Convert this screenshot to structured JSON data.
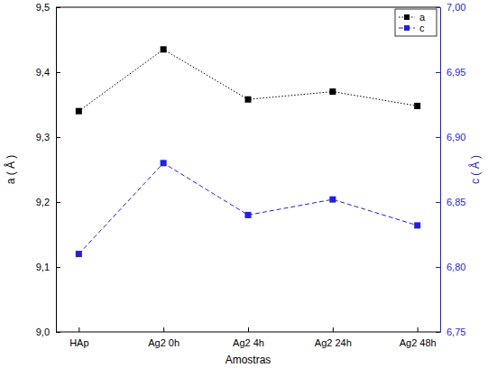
{
  "chart_data": {
    "type": "line",
    "xlabel": "Amostras",
    "ylabel": "a ( Å )",
    "y2label": "c ( Å )",
    "categories": [
      "HAp",
      "Ag2 0h",
      "Ag2 4h",
      "Ag2 24h",
      "Ag2 48h"
    ],
    "series": [
      {
        "name": "a",
        "color": "#000000",
        "marker": "square",
        "line_style": "dotted",
        "values": [
          9.34,
          9.435,
          9.358,
          9.37,
          9.348
        ]
      },
      {
        "name": "c",
        "color": "#1f1fe6",
        "marker": "square",
        "line_style": "dashed",
        "axis": "y2",
        "values": [
          6.81,
          6.88,
          6.84,
          6.852,
          6.832
        ]
      }
    ],
    "ylim": [
      9.0,
      9.5
    ],
    "yticks": [
      {
        "value": 9.0,
        "label": "9,0"
      },
      {
        "value": 9.1,
        "label": "9,1"
      },
      {
        "value": 9.2,
        "label": "9,2"
      },
      {
        "value": 9.3,
        "label": "9,3"
      },
      {
        "value": 9.4,
        "label": "9,4"
      },
      {
        "value": 9.5,
        "label": "9,5"
      }
    ],
    "y2lim": [
      6.75,
      7.0
    ],
    "y2ticks": [
      {
        "value": 6.75,
        "label": "6,75"
      },
      {
        "value": 6.8,
        "label": "6,80"
      },
      {
        "value": 6.85,
        "label": "6,85"
      },
      {
        "value": 6.9,
        "label": "6,90"
      },
      {
        "value": 6.95,
        "label": "6,95"
      },
      {
        "value": 7.0,
        "label": "7,00"
      }
    ],
    "legend": "upper right",
    "grid": false
  }
}
